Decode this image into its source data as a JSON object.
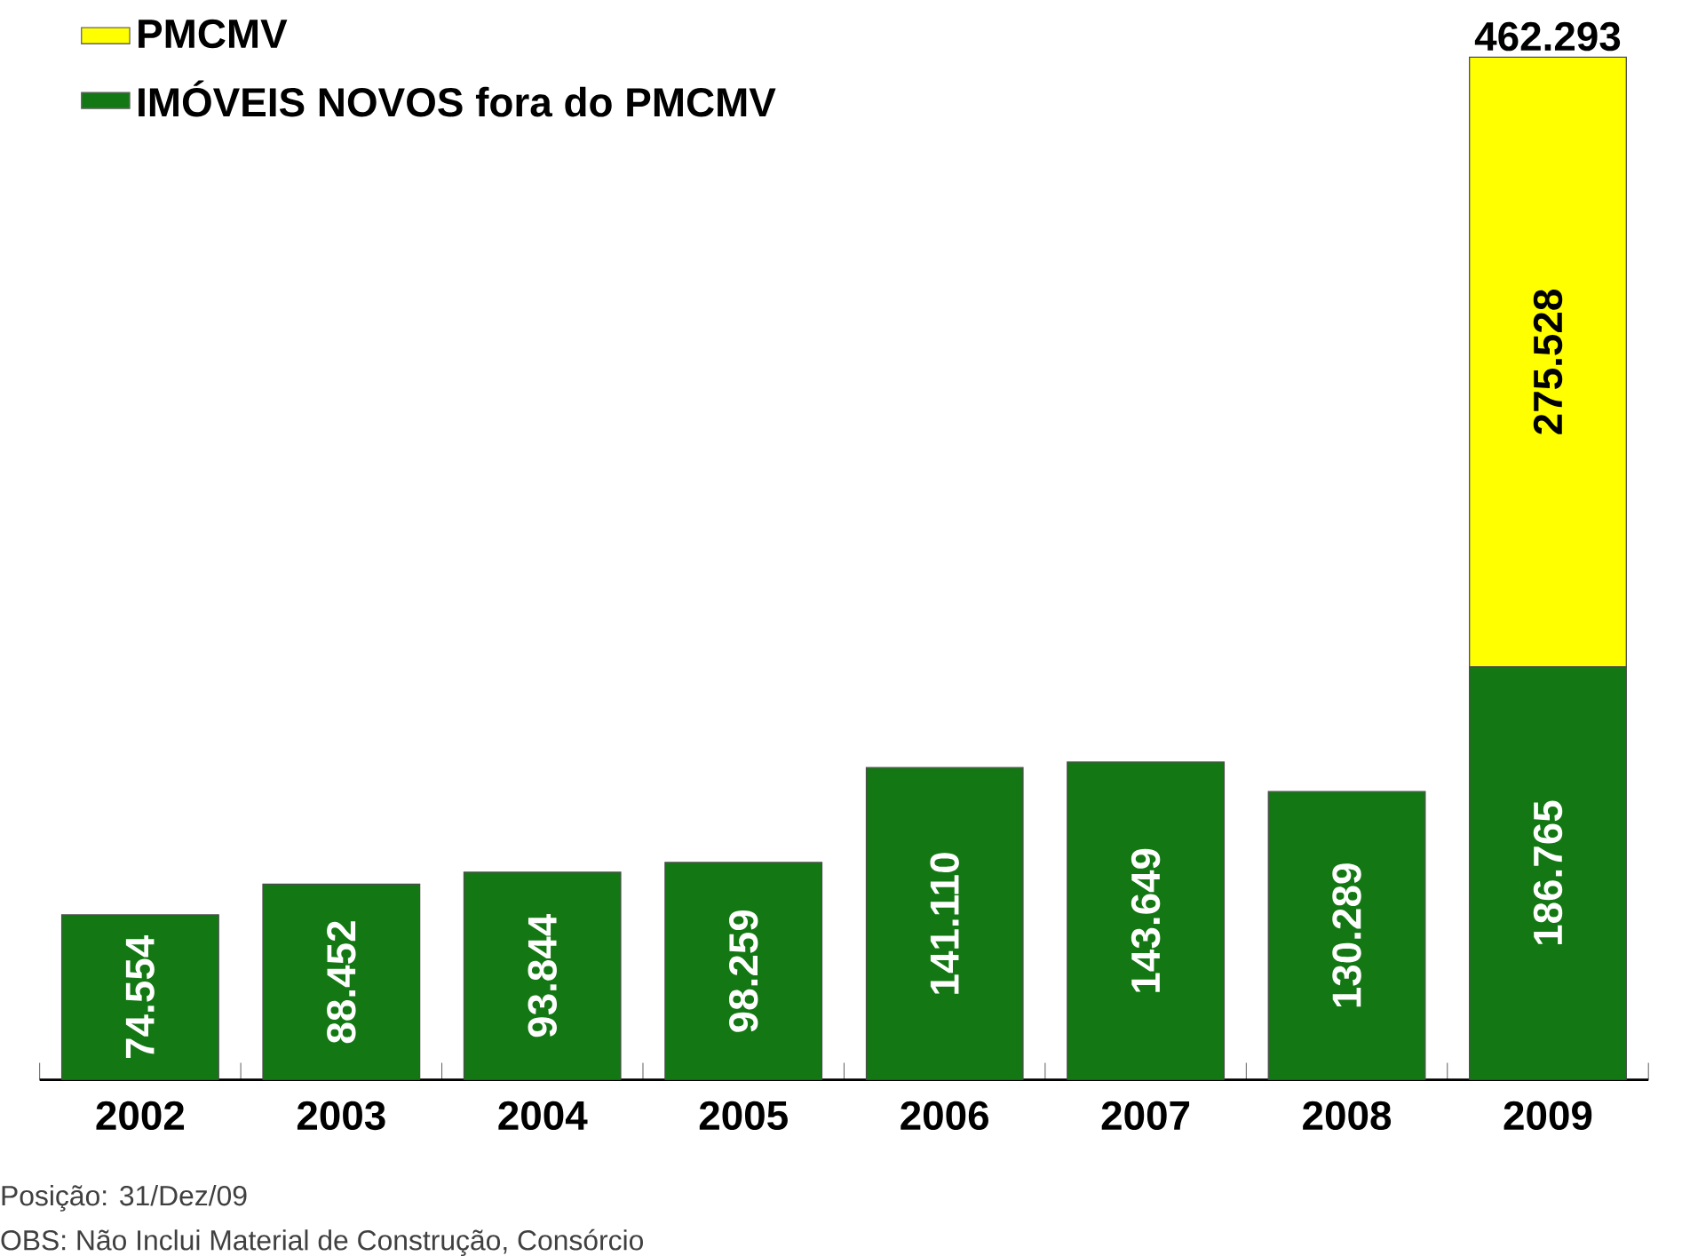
{
  "chart_data": {
    "type": "bar",
    "stacked": true,
    "categories": [
      "2002",
      "2003",
      "2004",
      "2005",
      "2006",
      "2007",
      "2008",
      "2009"
    ],
    "series": [
      {
        "name": "IMÓVEIS NOVOS fora do PMCMV",
        "color": "#137813",
        "values": [
          74554,
          88452,
          93844,
          98259,
          141110,
          143649,
          130289,
          186765
        ],
        "value_labels": [
          "74.554",
          "88.452",
          "93.844",
          "98.259",
          "141.110",
          "143.649",
          "130.289",
          "186.765"
        ]
      },
      {
        "name": "PMCMV",
        "color": "#ffff00",
        "values": [
          null,
          null,
          null,
          null,
          null,
          null,
          null,
          275528
        ],
        "value_labels": [
          null,
          null,
          null,
          null,
          null,
          null,
          null,
          "275.528"
        ]
      }
    ],
    "totals": [
      null,
      null,
      null,
      null,
      null,
      null,
      null,
      "462.293"
    ],
    "legend": "top left",
    "annotations": [
      "Posição: 31/Dez/09",
      "OBS: Não Inclui Material de Construção, Consórcio"
    ]
  }
}
